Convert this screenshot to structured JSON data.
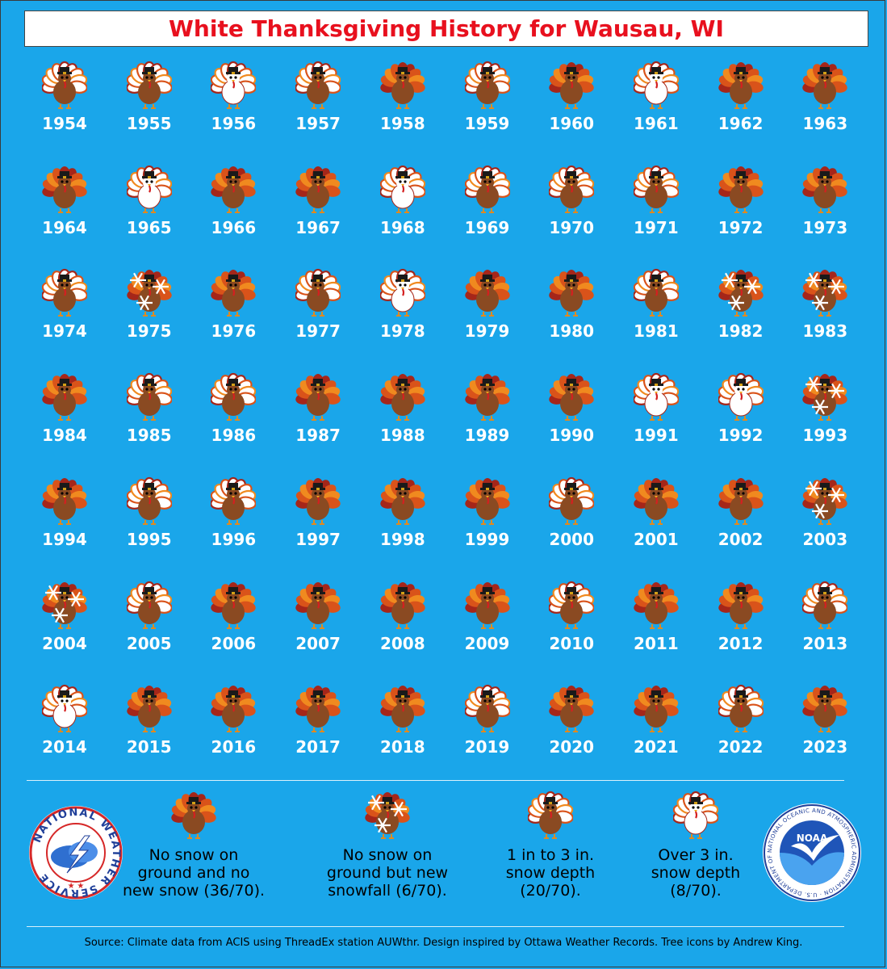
{
  "title": "White Thanksgiving History for Wausau, WI",
  "chart_data": {
    "type": "table",
    "title": "White Thanksgiving History for Wausau, WI",
    "categories": [
      "none",
      "new",
      "light",
      "deep"
    ],
    "legend": [
      {
        "key": "none",
        "lines": [
          "No snow on",
          "ground and no",
          "new snow (36/70)."
        ],
        "count": 36
      },
      {
        "key": "new",
        "lines": [
          "No snow on",
          "ground but new",
          "snowfall (6/70)."
        ],
        "count": 6
      },
      {
        "key": "light",
        "lines": [
          "1 in to 3 in.",
          "snow depth",
          "(20/70)."
        ],
        "count": 20
      },
      {
        "key": "deep",
        "lines": [
          "Over 3 in.",
          "snow depth",
          "(8/70)."
        ],
        "count": 8
      }
    ],
    "years": [
      {
        "year": 1954,
        "cat": "light"
      },
      {
        "year": 1955,
        "cat": "light"
      },
      {
        "year": 1956,
        "cat": "deep"
      },
      {
        "year": 1957,
        "cat": "light"
      },
      {
        "year": 1958,
        "cat": "none"
      },
      {
        "year": 1959,
        "cat": "light"
      },
      {
        "year": 1960,
        "cat": "none"
      },
      {
        "year": 1961,
        "cat": "deep"
      },
      {
        "year": 1962,
        "cat": "none"
      },
      {
        "year": 1963,
        "cat": "none"
      },
      {
        "year": 1964,
        "cat": "none"
      },
      {
        "year": 1965,
        "cat": "deep"
      },
      {
        "year": 1966,
        "cat": "none"
      },
      {
        "year": 1967,
        "cat": "none"
      },
      {
        "year": 1968,
        "cat": "deep"
      },
      {
        "year": 1969,
        "cat": "light"
      },
      {
        "year": 1970,
        "cat": "light"
      },
      {
        "year": 1971,
        "cat": "light"
      },
      {
        "year": 1972,
        "cat": "none"
      },
      {
        "year": 1973,
        "cat": "none"
      },
      {
        "year": 1974,
        "cat": "light"
      },
      {
        "year": 1975,
        "cat": "new"
      },
      {
        "year": 1976,
        "cat": "none"
      },
      {
        "year": 1977,
        "cat": "light"
      },
      {
        "year": 1978,
        "cat": "deep"
      },
      {
        "year": 1979,
        "cat": "none"
      },
      {
        "year": 1980,
        "cat": "none"
      },
      {
        "year": 1981,
        "cat": "light"
      },
      {
        "year": 1982,
        "cat": "new"
      },
      {
        "year": 1983,
        "cat": "new"
      },
      {
        "year": 1984,
        "cat": "none"
      },
      {
        "year": 1985,
        "cat": "light"
      },
      {
        "year": 1986,
        "cat": "light"
      },
      {
        "year": 1987,
        "cat": "none"
      },
      {
        "year": 1988,
        "cat": "none"
      },
      {
        "year": 1989,
        "cat": "none"
      },
      {
        "year": 1990,
        "cat": "none"
      },
      {
        "year": 1991,
        "cat": "deep"
      },
      {
        "year": 1992,
        "cat": "deep"
      },
      {
        "year": 1993,
        "cat": "new"
      },
      {
        "year": 1994,
        "cat": "none"
      },
      {
        "year": 1995,
        "cat": "light"
      },
      {
        "year": 1996,
        "cat": "light"
      },
      {
        "year": 1997,
        "cat": "none"
      },
      {
        "year": 1998,
        "cat": "none"
      },
      {
        "year": 1999,
        "cat": "none"
      },
      {
        "year": 2000,
        "cat": "light"
      },
      {
        "year": 2001,
        "cat": "none"
      },
      {
        "year": 2002,
        "cat": "none"
      },
      {
        "year": 2003,
        "cat": "new"
      },
      {
        "year": 2004,
        "cat": "new"
      },
      {
        "year": 2005,
        "cat": "light"
      },
      {
        "year": 2006,
        "cat": "none"
      },
      {
        "year": 2007,
        "cat": "none"
      },
      {
        "year": 2008,
        "cat": "none"
      },
      {
        "year": 2009,
        "cat": "none"
      },
      {
        "year": 2010,
        "cat": "light"
      },
      {
        "year": 2011,
        "cat": "none"
      },
      {
        "year": 2012,
        "cat": "none"
      },
      {
        "year": 2013,
        "cat": "light"
      },
      {
        "year": 2014,
        "cat": "deep"
      },
      {
        "year": 2015,
        "cat": "none"
      },
      {
        "year": 2016,
        "cat": "none"
      },
      {
        "year": 2017,
        "cat": "none"
      },
      {
        "year": 2018,
        "cat": "none"
      },
      {
        "year": 2019,
        "cat": "light"
      },
      {
        "year": 2020,
        "cat": "none"
      },
      {
        "year": 2021,
        "cat": "none"
      },
      {
        "year": 2022,
        "cat": "light"
      },
      {
        "year": 2023,
        "cat": "none"
      }
    ]
  },
  "source": "Source: Climate data from ACIS using ThreadEx station AUWthr. Design inspired by Ottawa Weather Records. Tree icons by Andrew King.",
  "logos": {
    "nws_text": "NATIONAL WEATHER SERVICE",
    "noaa_text": "NOAA",
    "noaa_ring_text": "NATIONAL OCEANIC AND ATMOSPHERIC ADMINISTRATION · U.S. DEPARTMENT OF COMMERCE"
  },
  "colors": {
    "background": "#1aa6ea",
    "title": "#e8101e",
    "body": "#8a4a22",
    "feather_dark": "#a5261a",
    "feather_mid": "#d9531a",
    "feather_light": "#f08a1f",
    "snow": "#ffffff"
  }
}
